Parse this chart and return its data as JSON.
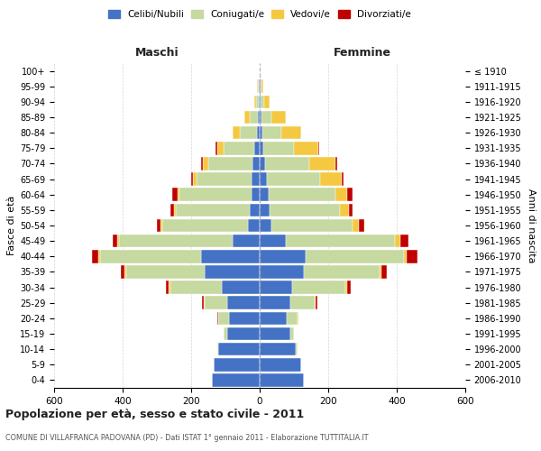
{
  "age_groups": [
    "0-4",
    "5-9",
    "10-14",
    "15-19",
    "20-24",
    "25-29",
    "30-34",
    "35-39",
    "40-44",
    "45-49",
    "50-54",
    "55-59",
    "60-64",
    "65-69",
    "70-74",
    "75-79",
    "80-84",
    "85-89",
    "90-94",
    "95-99",
    "100+"
  ],
  "birth_years": [
    "2006-2010",
    "2001-2005",
    "1996-2000",
    "1991-1995",
    "1986-1990",
    "1981-1985",
    "1976-1980",
    "1971-1975",
    "1966-1970",
    "1961-1965",
    "1956-1960",
    "1951-1955",
    "1946-1950",
    "1941-1945",
    "1936-1940",
    "1931-1935",
    "1926-1930",
    "1921-1925",
    "1916-1920",
    "1911-1915",
    "≤ 1910"
  ],
  "male": {
    "celibi": [
      140,
      135,
      120,
      95,
      90,
      95,
      110,
      160,
      170,
      80,
      35,
      30,
      25,
      25,
      20,
      15,
      8,
      5,
      3,
      2,
      0
    ],
    "coniugati": [
      0,
      0,
      5,
      10,
      30,
      65,
      150,
      230,
      295,
      330,
      250,
      215,
      210,
      160,
      130,
      90,
      50,
      25,
      8,
      3,
      0
    ],
    "vedovi": [
      0,
      0,
      0,
      0,
      2,
      3,
      5,
      5,
      5,
      5,
      5,
      5,
      5,
      10,
      15,
      20,
      20,
      15,
      5,
      2,
      0
    ],
    "divorziati": [
      0,
      0,
      0,
      0,
      2,
      5,
      10,
      10,
      20,
      15,
      10,
      10,
      15,
      5,
      5,
      3,
      0,
      0,
      0,
      0,
      0
    ]
  },
  "female": {
    "nubili": [
      130,
      120,
      105,
      90,
      80,
      90,
      95,
      130,
      135,
      75,
      35,
      30,
      25,
      20,
      15,
      10,
      7,
      5,
      3,
      2,
      0
    ],
    "coniugate": [
      0,
      0,
      5,
      10,
      30,
      70,
      155,
      220,
      285,
      320,
      235,
      205,
      195,
      155,
      130,
      90,
      55,
      30,
      10,
      3,
      0
    ],
    "vedove": [
      0,
      0,
      0,
      0,
      2,
      3,
      5,
      5,
      10,
      15,
      20,
      25,
      35,
      65,
      75,
      70,
      60,
      40,
      15,
      5,
      0
    ],
    "divorziate": [
      0,
      0,
      0,
      0,
      2,
      5,
      10,
      15,
      30,
      25,
      15,
      10,
      15,
      5,
      5,
      3,
      0,
      0,
      0,
      0,
      0
    ]
  },
  "colors": {
    "celibi": "#4472C4",
    "coniugati": "#C5D9A0",
    "vedovi": "#F5C842",
    "divorziati": "#C00000"
  },
  "xlim": 600,
  "title": "Popolazione per età, sesso e stato civile - 2011",
  "subtitle": "COMUNE DI VILLAFRANCA PADOVANA (PD) - Dati ISTAT 1° gennaio 2011 - Elaborazione TUTTITALIA.IT",
  "ylabel_left": "Fasce di età",
  "ylabel_right": "Anni di nascita",
  "legend_labels": [
    "Celibi/Nubili",
    "Coniugati/e",
    "Vedovi/e",
    "Divorziati/e"
  ],
  "background_color": "#ffffff",
  "grid_color": "#cccccc"
}
